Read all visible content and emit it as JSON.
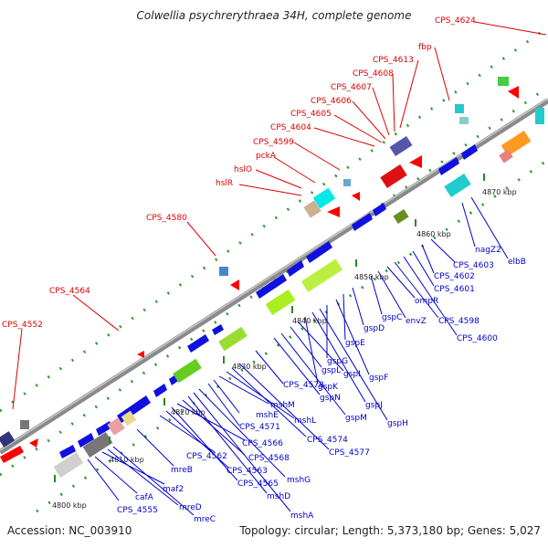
{
  "title": "Colwellia psychrerythraea 34H, complete genome",
  "accession": "Accession: NC_003910",
  "topology": "Topology: circular; Length: 5,373,180 bp; Genes: 5,027",
  "kbp_ticks": [
    "4800 kbp",
    "4810 kbp",
    "4820 kbp",
    "4830 kbp",
    "4840 kbp",
    "4850 kbp",
    "4860 kbp",
    "4870 kbp"
  ],
  "outer_labels": [
    "CPS_4552",
    "CPS_4564",
    "CPS_4580",
    "hslR",
    "hslO",
    "pckA",
    "CPS_4599",
    "CPS_4604",
    "CPS_4605",
    "CPS_4606",
    "CPS_4607",
    "CPS_4608",
    "CPS_4613",
    "fbp",
    "CPS_4624"
  ],
  "inner_labels": [
    "CPS_4555",
    "cafA",
    "maf2",
    "mreD",
    "mreC",
    "mreB",
    "CPS_4562",
    "CPS_4563",
    "CPS_4565",
    "CPS_4566",
    "CPS_4568",
    "mshD",
    "mshA",
    "mshG",
    "CPS_4571",
    "mshE",
    "mshM",
    "mshL",
    "CPS_4574",
    "CPS_4577",
    "CPS_4578",
    "gspN",
    "gspM",
    "gspL",
    "gspI",
    "gspK",
    "gspJ",
    "gspH",
    "gspG",
    "gspF",
    "gspE",
    "gspD",
    "gspC",
    "envZ",
    "ompR",
    "CPS_4598",
    "CPS_4600",
    "CPS_4601",
    "CPS_4602",
    "CPS_4603",
    "nagZ2",
    "elbB"
  ],
  "colors": {
    "outer": "#e00000",
    "inner": "#0000cc",
    "backbone": "#7a7a7a",
    "tick": "#228b22"
  }
}
